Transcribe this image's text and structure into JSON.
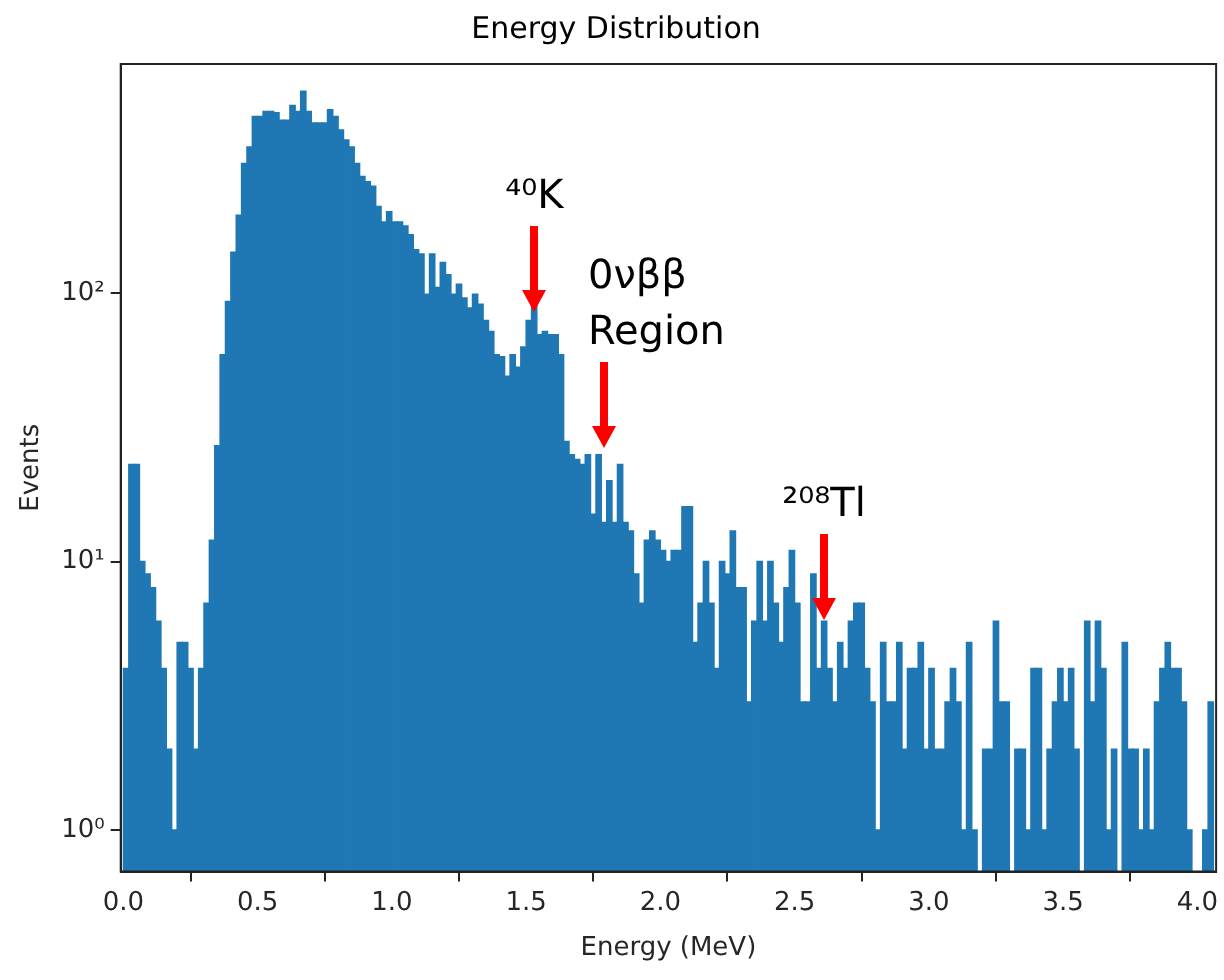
{
  "chart_data": {
    "type": "histogram",
    "title": "Energy Distribution",
    "xlabel": "Energy (MeV)",
    "ylabel": "Events",
    "bins": [
      0,
      0.02,
      0.04,
      0.06,
      0.08,
      0.1,
      0.12,
      0.14,
      0.16,
      0.18,
      0.2,
      0.22,
      0.24,
      0.26,
      0.28,
      0.3,
      0.32,
      0.34,
      0.36,
      0.38,
      0.4,
      0.42,
      0.44,
      0.46,
      0.48,
      0.5,
      0.52,
      0.54,
      0.56,
      0.58,
      0.6,
      0.62,
      0.64,
      0.66,
      0.68,
      0.7,
      0.72,
      0.74,
      0.76,
      0.78,
      0.8,
      0.82,
      0.84,
      0.86,
      0.88,
      0.9,
      0.92,
      0.94,
      0.96,
      0.98,
      1,
      1.02,
      1.04,
      1.06,
      1.08,
      1.1,
      1.12,
      1.14,
      1.16,
      1.18,
      1.2,
      1.22,
      1.24,
      1.26,
      1.28,
      1.3,
      1.32,
      1.34,
      1.36,
      1.38,
      1.4,
      1.42,
      1.44,
      1.46,
      1.48,
      1.5,
      1.52,
      1.54,
      1.56,
      1.58,
      1.6,
      1.62,
      1.64,
      1.66,
      1.68,
      1.7,
      1.72,
      1.74,
      1.76,
      1.78,
      1.8,
      1.82,
      1.84,
      1.86,
      1.88,
      1.9,
      1.92,
      1.94,
      1.96,
      1.98,
      2,
      2.02,
      2.04,
      2.06,
      2.08,
      2.1,
      2.12,
      2.14,
      2.16,
      2.18,
      2.2,
      2.22,
      2.24,
      2.26,
      2.28,
      2.3,
      2.32,
      2.34,
      2.36,
      2.38,
      2.4,
      2.42,
      2.44,
      2.46,
      2.48,
      2.5,
      2.52,
      2.54,
      2.56,
      2.58,
      2.6,
      2.62,
      2.64,
      2.66,
      2.68,
      2.7,
      2.72,
      2.74,
      2.76,
      2.78,
      2.8,
      2.82,
      2.84,
      2.86,
      2.88,
      2.9,
      2.92,
      2.94,
      2.96,
      2.98,
      3,
      3.02,
      3.04,
      3.06,
      3.08,
      3.1,
      3.12,
      3.14,
      3.16,
      3.18,
      3.2,
      3.22,
      3.24,
      3.26,
      3.28,
      3.3,
      3.32,
      3.34,
      3.36,
      3.38,
      3.4,
      3.42,
      3.44,
      3.46,
      3.48,
      3.5,
      3.52,
      3.54,
      3.56,
      3.58,
      3.6,
      3.62,
      3.64,
      3.66,
      3.68,
      3.7,
      3.72,
      3.74,
      3.76,
      3.78,
      3.8,
      3.82,
      3.84,
      3.86,
      3.88,
      3.9,
      3.92,
      3.94,
      3.96,
      3.98,
      4,
      4.02,
      4.04,
      4.06
    ],
    "values": [
      4,
      23,
      23,
      10,
      9,
      8,
      6,
      4,
      2,
      1,
      5,
      5,
      4,
      2,
      4,
      7,
      12,
      27,
      59,
      93,
      142,
      195,
      304,
      350,
      455,
      455,
      475,
      475,
      470,
      440,
      440,
      500,
      475,
      565,
      475,
      430,
      430,
      430,
      482,
      455,
      405,
      372,
      350,
      304,
      272,
      260,
      250,
      210,
      184,
      201,
      184,
      184,
      178,
      165,
      145,
      140,
      99,
      140,
      105,
      130,
      117,
      99,
      108,
      96,
      88,
      99,
      91,
      79,
      72,
      59,
      58,
      49,
      59,
      53,
      63,
      79,
      93,
      70,
      72,
      70,
      70,
      59,
      28,
      25,
      24,
      23,
      25,
      15,
      25,
      14,
      20,
      14,
      23,
      14,
      13,
      9,
      7,
      12,
      13,
      12,
      11,
      10,
      11,
      11,
      16,
      16,
      5,
      7,
      10,
      7,
      4,
      10,
      9,
      13,
      8,
      8,
      3,
      6,
      10,
      6,
      10,
      7,
      5,
      8,
      11,
      7,
      3,
      3,
      9,
      4,
      6,
      4,
      3,
      5,
      4,
      6,
      7,
      7,
      4,
      3,
      1,
      5,
      3,
      3,
      5,
      2,
      4,
      4,
      5,
      2,
      4,
      2,
      2,
      3,
      4,
      3,
      1,
      5,
      1,
      null,
      2,
      2,
      6,
      3,
      3,
      null,
      2,
      2,
      1,
      4,
      4,
      1,
      2,
      3,
      4,
      3,
      4,
      2,
      null,
      6,
      3,
      6,
      4,
      1,
      2,
      null,
      5,
      2,
      2,
      1,
      2,
      1,
      3,
      4,
      5,
      4,
      4,
      3,
      1,
      null,
      null,
      1,
      3
    ],
    "color": "#1f77b4",
    "log": true,
    "grid": false,
    "legend": false,
    "xlim": [
      -0.01,
      4.07
    ],
    "xticks": [
      {
        "value": 0,
        "label": "0.0"
      },
      0.5,
      {
        "value": 1,
        "label": "1.0"
      },
      1.5,
      {
        "value": 2,
        "label": "2.0"
      },
      2.5,
      {
        "value": 3,
        "label": "3.0"
      },
      3.5,
      {
        "value": 4,
        "label": "4.0"
      }
    ],
    "ylim": [
      0.72,
      713
    ],
    "yticks": [
      {
        "value": 1,
        "label": "10⁰"
      },
      {
        "value": 10,
        "label": "10¹"
      },
      {
        "value": 100,
        "label": "10²"
      }
    ],
    "annotations": [
      {
        "text": "⁴⁰K",
        "x": 1.53,
        "y": 83
      },
      {
        "text": "0νββ Region",
        "x": 1.79,
        "y": 26
      },
      {
        "text": "²⁰⁸Tl",
        "x": 2.61,
        "y": 6
      }
    ]
  }
}
